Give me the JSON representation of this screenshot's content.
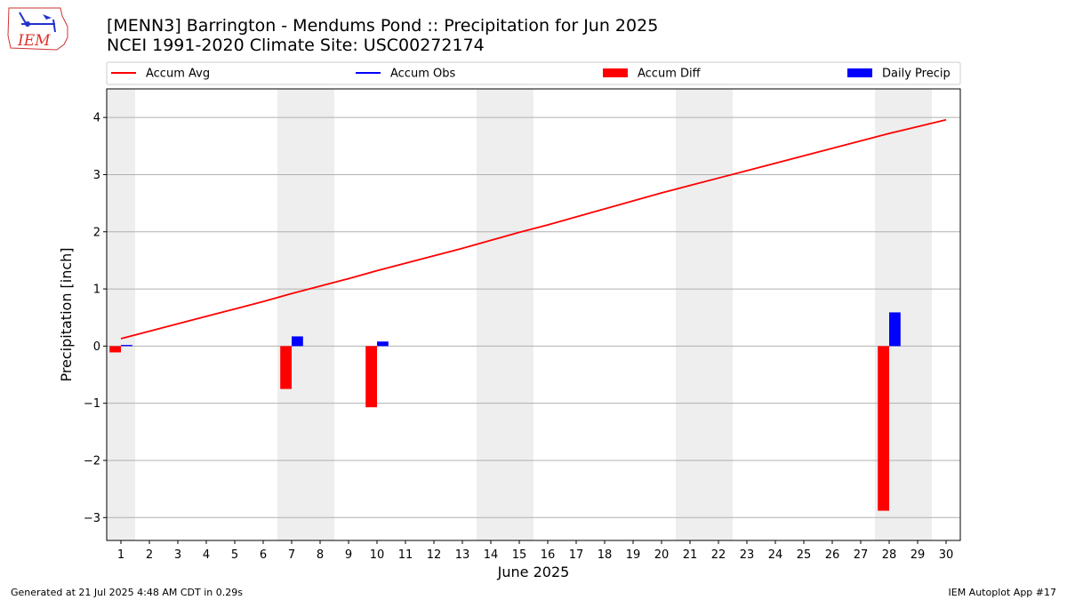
{
  "header": {
    "title_line1": "[MENN3] Barrington - Mendums Pond :: Precipitation for Jun 2025",
    "title_line2": "NCEI 1991-2020 Climate Site: USC00272174"
  },
  "logo": {
    "text": "IEM",
    "icon": "iowa-state-outline-logo",
    "color": "#e0302a"
  },
  "footer": {
    "left": "Generated at 21 Jul 2025 4:48 AM CDT in 0.29s",
    "right": "IEM Autoplot App #17"
  },
  "chart_data": {
    "type": "bar",
    "xlabel": "June 2025",
    "ylabel": "Precipitation [inch]",
    "ylim": [
      -3.4,
      4.5
    ],
    "xlim": [
      0.5,
      30.5
    ],
    "yticks": [
      -3,
      -2,
      -1,
      0,
      1,
      2,
      3,
      4
    ],
    "ytick_labels": [
      "−3",
      "−2",
      "−1",
      "0",
      "1",
      "2",
      "3",
      "4"
    ],
    "xticks": [
      1,
      2,
      3,
      4,
      5,
      6,
      7,
      8,
      9,
      10,
      11,
      12,
      13,
      14,
      15,
      16,
      17,
      18,
      19,
      20,
      21,
      22,
      23,
      24,
      25,
      26,
      27,
      28,
      29,
      30
    ],
    "grid": "horizontal",
    "weekend_shading": [
      [
        0.5,
        1.5
      ],
      [
        6.5,
        8.5
      ],
      [
        13.5,
        15.5
      ],
      [
        20.5,
        22.5
      ],
      [
        27.5,
        29.5
      ]
    ],
    "legend": {
      "placement": "top",
      "entries": [
        {
          "label": "Accum Avg",
          "kind": "line",
          "color": "#ff0000"
        },
        {
          "label": "Accum Obs",
          "kind": "line",
          "color": "#0000ff"
        },
        {
          "label": "Accum Diff",
          "kind": "bar",
          "color": "#ff0000"
        },
        {
          "label": "Daily Precip",
          "kind": "bar",
          "color": "#0000ff"
        }
      ]
    },
    "series": [
      {
        "name": "Accum Avg",
        "type": "line",
        "color": "#ff0000",
        "x": [
          1,
          2,
          3,
          4,
          5,
          6,
          7,
          8,
          9,
          10,
          11,
          12,
          13,
          14,
          15,
          16,
          17,
          18,
          19,
          20,
          21,
          22,
          23,
          24,
          25,
          26,
          27,
          28,
          29,
          30
        ],
        "values": [
          0.13,
          0.26,
          0.39,
          0.52,
          0.65,
          0.78,
          0.92,
          1.05,
          1.18,
          1.32,
          1.45,
          1.58,
          1.71,
          1.85,
          1.99,
          2.12,
          2.26,
          2.4,
          2.54,
          2.68,
          2.81,
          2.94,
          3.07,
          3.2,
          3.33,
          3.46,
          3.59,
          3.72,
          3.84,
          3.96
        ]
      },
      {
        "name": "Accum Diff",
        "type": "bar",
        "color": "#ff0000",
        "x": [
          1,
          7,
          10,
          28
        ],
        "values": [
          -0.11,
          -0.75,
          -1.07,
          -2.88
        ]
      },
      {
        "name": "Daily Precip",
        "type": "bar",
        "color": "#0000ff",
        "x": [
          1,
          7,
          10,
          28
        ],
        "values": [
          0.02,
          0.17,
          0.08,
          0.59
        ]
      }
    ]
  }
}
